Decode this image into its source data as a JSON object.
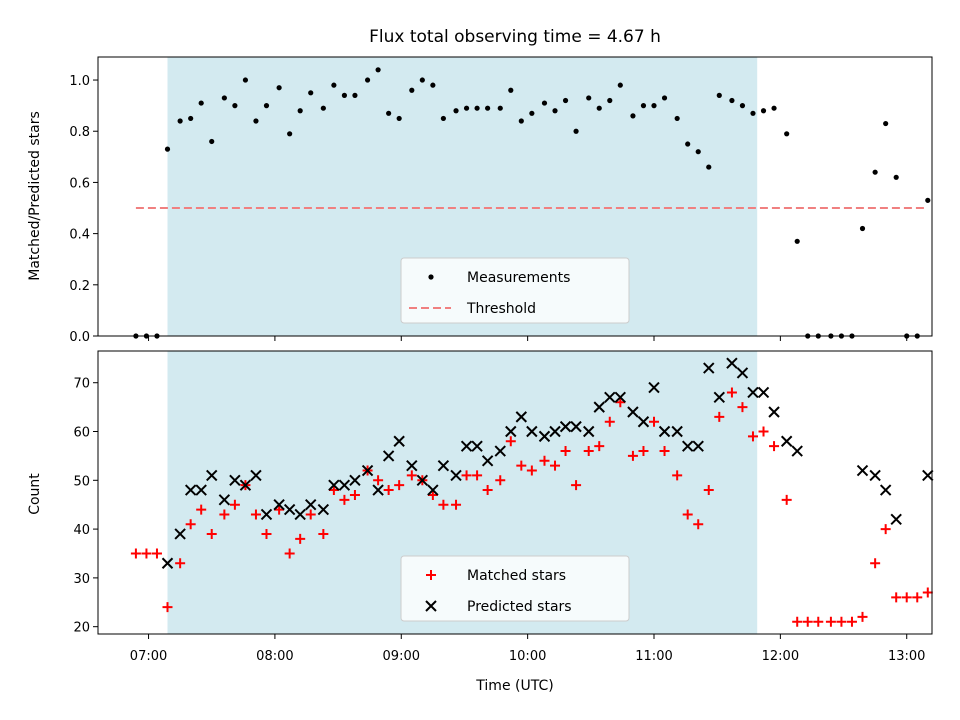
{
  "chart_data": {
    "type": "scatter",
    "title": "Flux total observing time = 4.67 h",
    "xlabel": "Time (UTC)",
    "xlim": [
      "06:36",
      "13:12"
    ],
    "xticks": [
      "07:00",
      "08:00",
      "09:00",
      "10:00",
      "11:00",
      "12:00",
      "13:00"
    ],
    "shaded_interval": {
      "start": "07:09",
      "end": "11:49",
      "color": "#d3eaf0"
    },
    "panels": [
      {
        "name": "ratio",
        "ylabel": "Matched/Predicted stars",
        "ylim": [
          0.0,
          1.09
        ],
        "yticks": [
          "0.0",
          "0.2",
          "0.4",
          "0.6",
          "0.8",
          "1.0"
        ],
        "legend": "lower-center",
        "series": [
          {
            "name": "Measurements",
            "kind": "points",
            "color": "#000000",
            "points": [
              [
                "06:54",
                0.0
              ],
              [
                "06:59",
                0.0
              ],
              [
                "07:04",
                0.0
              ],
              [
                "07:09",
                0.73
              ],
              [
                "07:15",
                0.84
              ],
              [
                "07:20",
                0.85
              ],
              [
                "07:25",
                0.91
              ],
              [
                "07:30",
                0.76
              ],
              [
                "07:36",
                0.93
              ],
              [
                "07:41",
                0.9
              ],
              [
                "07:46",
                1.0
              ],
              [
                "07:51",
                0.84
              ],
              [
                "07:56",
                0.9
              ],
              [
                "08:02",
                0.97
              ],
              [
                "08:07",
                0.79
              ],
              [
                "08:12",
                0.88
              ],
              [
                "08:17",
                0.95
              ],
              [
                "08:23",
                0.89
              ],
              [
                "08:28",
                0.98
              ],
              [
                "08:33",
                0.94
              ],
              [
                "08:38",
                0.94
              ],
              [
                "08:44",
                1.0
              ],
              [
                "08:49",
                1.04
              ],
              [
                "08:54",
                0.87
              ],
              [
                "08:59",
                0.85
              ],
              [
                "09:05",
                0.96
              ],
              [
                "09:10",
                1.0
              ],
              [
                "09:15",
                0.98
              ],
              [
                "09:20",
                0.85
              ],
              [
                "09:26",
                0.88
              ],
              [
                "09:31",
                0.89
              ],
              [
                "09:36",
                0.89
              ],
              [
                "09:41",
                0.89
              ],
              [
                "09:47",
                0.89
              ],
              [
                "09:52",
                0.96
              ],
              [
                "09:57",
                0.84
              ],
              [
                "10:02",
                0.87
              ],
              [
                "10:08",
                0.91
              ],
              [
                "10:13",
                0.88
              ],
              [
                "10:18",
                0.92
              ],
              [
                "10:23",
                0.8
              ],
              [
                "10:29",
                0.93
              ],
              [
                "10:34",
                0.89
              ],
              [
                "10:39",
                0.92
              ],
              [
                "10:44",
                0.98
              ],
              [
                "10:50",
                0.86
              ],
              [
                "10:55",
                0.9
              ],
              [
                "11:00",
                0.9
              ],
              [
                "11:05",
                0.93
              ],
              [
                "11:11",
                0.85
              ],
              [
                "11:16",
                0.75
              ],
              [
                "11:21",
                0.72
              ],
              [
                "11:26",
                0.66
              ],
              [
                "11:31",
                0.94
              ],
              [
                "11:37",
                0.92
              ],
              [
                "11:42",
                0.9
              ],
              [
                "11:47",
                0.87
              ],
              [
                "11:52",
                0.88
              ],
              [
                "11:57",
                0.89
              ],
              [
                "12:03",
                0.79
              ],
              [
                "12:08",
                0.37
              ],
              [
                "12:13",
                0.0
              ],
              [
                "12:18",
                0.0
              ],
              [
                "12:24",
                0.0
              ],
              [
                "12:29",
                0.0
              ],
              [
                "12:34",
                0.0
              ],
              [
                "12:39",
                0.42
              ],
              [
                "12:45",
                0.64
              ],
              [
                "12:50",
                0.83
              ],
              [
                "12:55",
                0.62
              ],
              [
                "13:00",
                0.0
              ],
              [
                "13:05",
                0.0
              ],
              [
                "13:10",
                0.53
              ]
            ]
          },
          {
            "name": "Threshold",
            "kind": "dashed-line",
            "color": "#f08080",
            "x": [
              "06:54",
              "13:10"
            ],
            "values": [
              0.5,
              0.5
            ]
          }
        ]
      },
      {
        "name": "counts",
        "ylabel": "Count",
        "ylim": [
          18.5,
          76.5
        ],
        "yticks": [
          "20",
          "30",
          "40",
          "50",
          "60",
          "70"
        ],
        "legend": "lower-center",
        "series": [
          {
            "name": "Matched stars",
            "kind": "plus",
            "color": "#ff0000",
            "points": [
              [
                "06:54",
                35
              ],
              [
                "06:59",
                35
              ],
              [
                "07:04",
                35
              ],
              [
                "07:09",
                24
              ],
              [
                "07:15",
                33
              ],
              [
                "07:20",
                41
              ],
              [
                "07:25",
                44
              ],
              [
                "07:30",
                39
              ],
              [
                "07:36",
                43
              ],
              [
                "07:41",
                45
              ],
              [
                "07:46",
                49
              ],
              [
                "07:51",
                43
              ],
              [
                "07:56",
                39
              ],
              [
                "08:02",
                44
              ],
              [
                "08:07",
                35
              ],
              [
                "08:12",
                38
              ],
              [
                "08:17",
                43
              ],
              [
                "08:23",
                39
              ],
              [
                "08:28",
                48
              ],
              [
                "08:33",
                46
              ],
              [
                "08:38",
                47
              ],
              [
                "08:44",
                52
              ],
              [
                "08:49",
                50
              ],
              [
                "08:54",
                48
              ],
              [
                "08:59",
                49
              ],
              [
                "09:05",
                51
              ],
              [
                "09:10",
                50
              ],
              [
                "09:15",
                47
              ],
              [
                "09:20",
                45
              ],
              [
                "09:26",
                45
              ],
              [
                "09:31",
                51
              ],
              [
                "09:36",
                51
              ],
              [
                "09:41",
                48
              ],
              [
                "09:47",
                50
              ],
              [
                "09:52",
                58
              ],
              [
                "09:57",
                53
              ],
              [
                "10:02",
                52
              ],
              [
                "10:08",
                54
              ],
              [
                "10:13",
                53
              ],
              [
                "10:18",
                56
              ],
              [
                "10:23",
                49
              ],
              [
                "10:29",
                56
              ],
              [
                "10:34",
                57
              ],
              [
                "10:39",
                62
              ],
              [
                "10:44",
                66
              ],
              [
                "10:50",
                55
              ],
              [
                "10:55",
                56
              ],
              [
                "11:00",
                62
              ],
              [
                "11:05",
                56
              ],
              [
                "11:11",
                51
              ],
              [
                "11:16",
                43
              ],
              [
                "11:21",
                41
              ],
              [
                "11:26",
                48
              ],
              [
                "11:31",
                63
              ],
              [
                "11:37",
                68
              ],
              [
                "11:42",
                65
              ],
              [
                "11:47",
                59
              ],
              [
                "11:52",
                60
              ],
              [
                "11:57",
                57
              ],
              [
                "12:03",
                46
              ],
              [
                "12:08",
                21
              ],
              [
                "12:13",
                21
              ],
              [
                "12:18",
                21
              ],
              [
                "12:24",
                21
              ],
              [
                "12:29",
                21
              ],
              [
                "12:34",
                21
              ],
              [
                "12:39",
                22
              ],
              [
                "12:45",
                33
              ],
              [
                "12:50",
                40
              ],
              [
                "12:55",
                26
              ],
              [
                "13:00",
                26
              ],
              [
                "13:05",
                26
              ],
              [
                "13:10",
                27
              ]
            ]
          },
          {
            "name": "Predicted stars",
            "kind": "x",
            "color": "#000000",
            "points": [
              [
                "07:09",
                33
              ],
              [
                "07:15",
                39
              ],
              [
                "07:20",
                48
              ],
              [
                "07:25",
                48
              ],
              [
                "07:30",
                51
              ],
              [
                "07:36",
                46
              ],
              [
                "07:41",
                50
              ],
              [
                "07:46",
                49
              ],
              [
                "07:51",
                51
              ],
              [
                "07:56",
                43
              ],
              [
                "08:02",
                45
              ],
              [
                "08:07",
                44
              ],
              [
                "08:12",
                43
              ],
              [
                "08:17",
                45
              ],
              [
                "08:23",
                44
              ],
              [
                "08:28",
                49
              ],
              [
                "08:33",
                49
              ],
              [
                "08:38",
                50
              ],
              [
                "08:44",
                52
              ],
              [
                "08:49",
                48
              ],
              [
                "08:54",
                55
              ],
              [
                "08:59",
                58
              ],
              [
                "09:05",
                53
              ],
              [
                "09:10",
                50
              ],
              [
                "09:15",
                48
              ],
              [
                "09:20",
                53
              ],
              [
                "09:26",
                51
              ],
              [
                "09:31",
                57
              ],
              [
                "09:36",
                57
              ],
              [
                "09:41",
                54
              ],
              [
                "09:47",
                56
              ],
              [
                "09:52",
                60
              ],
              [
                "09:57",
                63
              ],
              [
                "10:02",
                60
              ],
              [
                "10:08",
                59
              ],
              [
                "10:13",
                60
              ],
              [
                "10:18",
                61
              ],
              [
                "10:23",
                61
              ],
              [
                "10:29",
                60
              ],
              [
                "10:34",
                65
              ],
              [
                "10:39",
                67
              ],
              [
                "10:44",
                67
              ],
              [
                "10:50",
                64
              ],
              [
                "10:55",
                62
              ],
              [
                "11:00",
                69
              ],
              [
                "11:05",
                60
              ],
              [
                "11:11",
                60
              ],
              [
                "11:16",
                57
              ],
              [
                "11:21",
                57
              ],
              [
                "11:26",
                73
              ],
              [
                "11:31",
                67
              ],
              [
                "11:37",
                74
              ],
              [
                "11:42",
                72
              ],
              [
                "11:47",
                68
              ],
              [
                "11:52",
                68
              ],
              [
                "11:57",
                64
              ],
              [
                "12:03",
                58
              ],
              [
                "12:08",
                56
              ],
              [
                "12:39",
                52
              ],
              [
                "12:45",
                51
              ],
              [
                "12:50",
                48
              ],
              [
                "12:55",
                42
              ],
              [
                "13:10",
                51
              ]
            ]
          }
        ]
      }
    ]
  }
}
